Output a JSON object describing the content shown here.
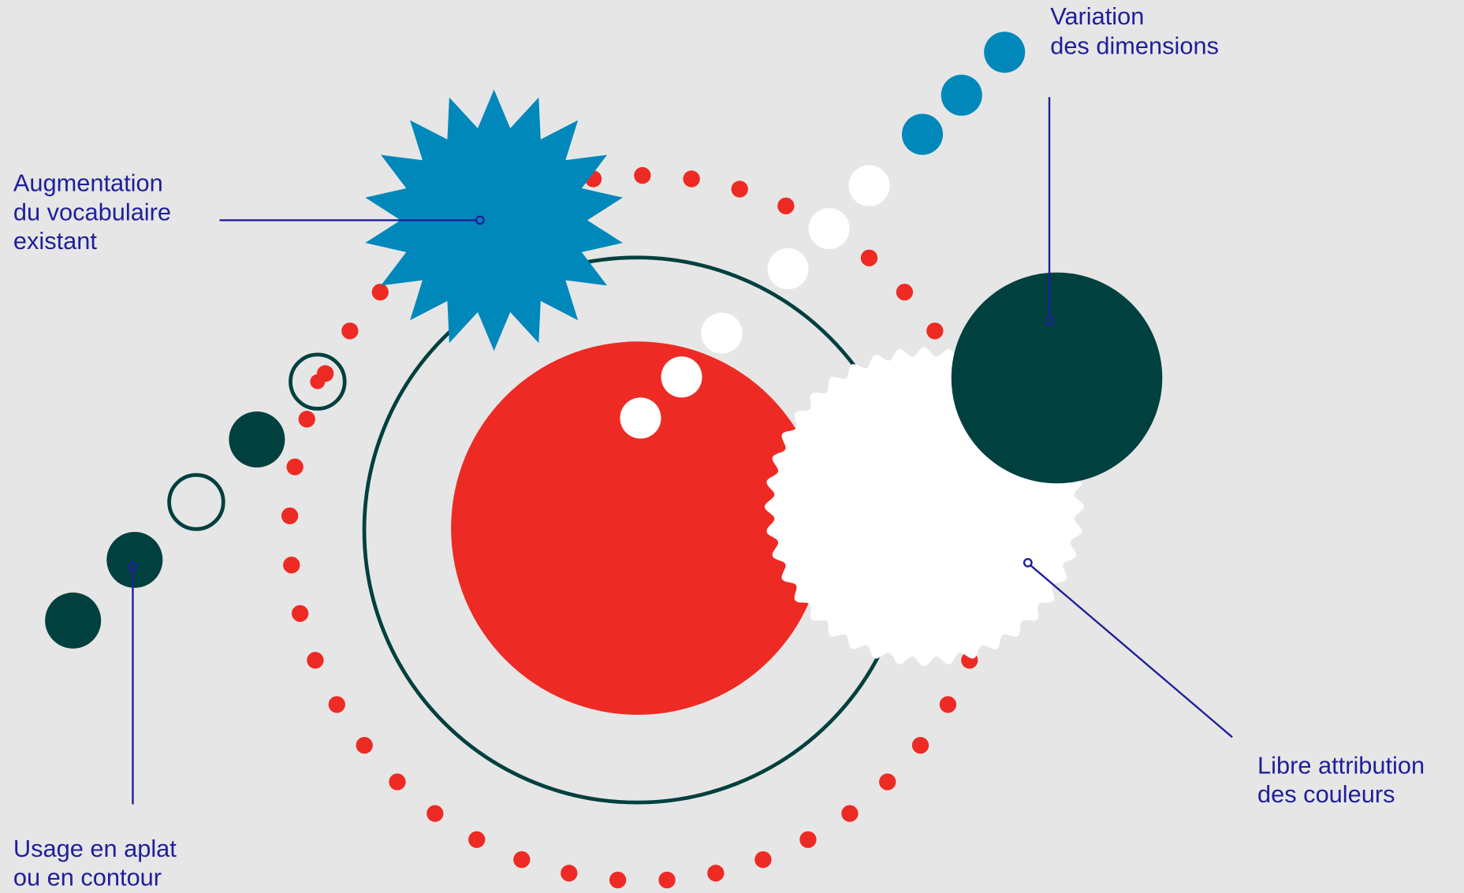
{
  "labels": [
    {
      "lines": [
        "Augmentation",
        "du vocabulaire",
        "existant"
      ]
    },
    {
      "lines": [
        "Variation",
        "des dimensions"
      ]
    },
    {
      "lines": [
        "Usage en aplat",
        "ou en contour"
      ]
    },
    {
      "lines": [
        "Libre attribution",
        "des couleurs"
      ]
    }
  ]
}
